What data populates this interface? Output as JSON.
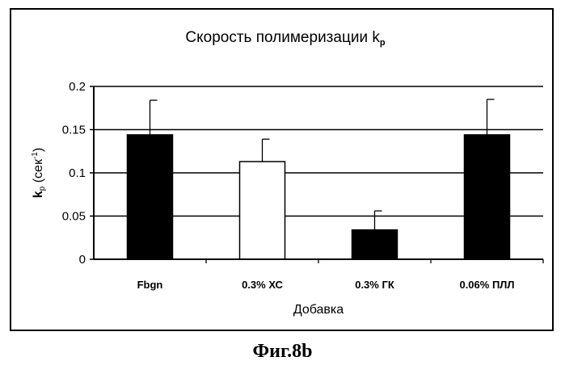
{
  "figure": {
    "caption": "Фиг.8b"
  },
  "chart_data": {
    "type": "bar",
    "title": "Скорость полимеризации k",
    "title_subscript": "p",
    "ylabel_symbol": "k",
    "ylabel_subscript": "p",
    "ylabel_text": " (сек",
    "ylabel_superscript": "-1",
    "ylabel_close": ")",
    "xlabel": "Добавка",
    "categories": [
      "Fbgn",
      "0.3% ХС",
      "0.3% ГК",
      "0.06% ПЛЛ"
    ],
    "values": [
      0.144,
      0.113,
      0.034,
      0.144
    ],
    "error_upper": [
      0.184,
      0.139,
      0.056,
      0.185
    ],
    "bar_colors": [
      "#000000",
      "#ffffff",
      "#000000",
      "#000000"
    ],
    "yticks": [
      "0",
      "0.05",
      "0.1",
      "0.15",
      "0.2"
    ],
    "ylim": [
      0,
      0.2
    ],
    "grid": true
  }
}
